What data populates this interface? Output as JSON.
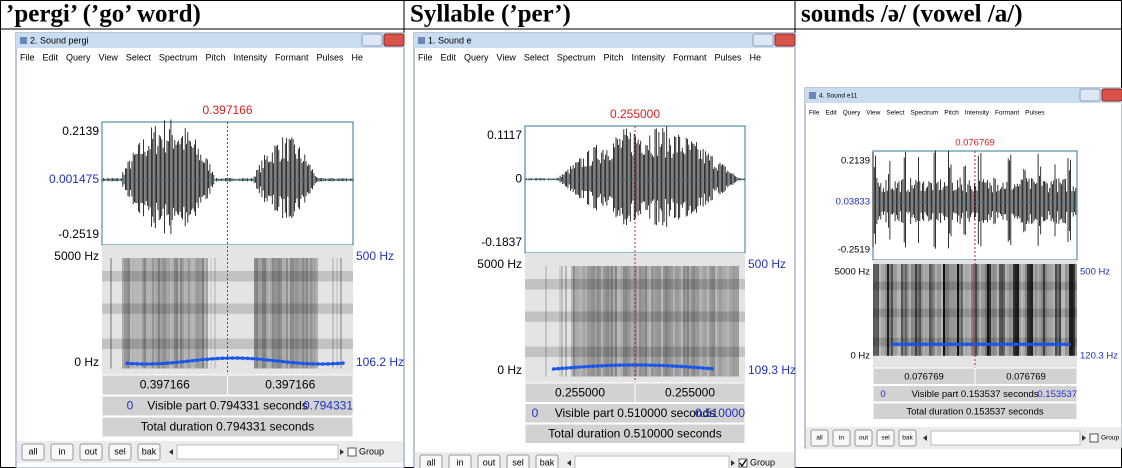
{
  "panels": [
    {
      "heading": "’pergi’ (’go’ word)",
      "window_title": "2. Sound pergi",
      "menu": [
        "File",
        "Edit",
        "Query",
        "View",
        "Select",
        "Spectrum",
        "Pitch",
        "Intensity",
        "Formant",
        "Pulses",
        "He"
      ],
      "cursor": "0.397166",
      "wave_ticks": [
        "0.2139",
        "0.001475",
        "-0.2519"
      ],
      "freq_top": "5000 Hz",
      "freq_bottom": "0 Hz",
      "right_top": "500 Hz",
      "pitch": "106.2 Hz",
      "times": [
        "0.397166",
        "0.397166"
      ],
      "visible_start": "0",
      "visible": "Visible part 0.794331 seconds",
      "visible_end": "0.794331",
      "total": "Total duration 0.794331 seconds",
      "buttons": [
        "all",
        "in",
        "out",
        "sel",
        "bak"
      ],
      "group": "Group",
      "group_checked": false
    },
    {
      "heading": "Syllable (’per’)",
      "window_title": "1. Sound e",
      "menu": [
        "File",
        "Edit",
        "Query",
        "View",
        "Select",
        "Spectrum",
        "Pitch",
        "Intensity",
        "Formant",
        "Pulses",
        "He"
      ],
      "cursor": "0.255000",
      "wave_ticks": [
        "0.1117",
        "0",
        "-0.1837"
      ],
      "freq_top": "5000 Hz",
      "freq_bottom": "0 Hz",
      "right_top": "500 Hz",
      "pitch": "109.3 Hz",
      "times": [
        "0.255000",
        "0.255000"
      ],
      "visible_start": "0",
      "visible": "Visible part 0.510000 seconds",
      "visible_end": "0.510000",
      "total": "Total duration 0.510000 seconds",
      "buttons": [
        "all",
        "in",
        "out",
        "sel",
        "bak"
      ],
      "group": "Group",
      "group_checked": true
    },
    {
      "heading": "sounds /ə/ (vowel /a/)",
      "window_title": "4. Sound e11",
      "menu": [
        "File",
        "Edit",
        "Query",
        "View",
        "Select",
        "Spectrum",
        "Pitch",
        "Intensity",
        "Formant",
        "Pulses"
      ],
      "cursor": "0.076769",
      "wave_ticks": [
        "0.2139",
        "0.03833",
        "-0.2519"
      ],
      "freq_top": "5000 Hz",
      "freq_bottom": "0 Hz",
      "right_top": "500 Hz",
      "pitch": "120.3 Hz",
      "times": [
        "0.076769",
        "0.076769"
      ],
      "visible_start": "0",
      "visible": "Visible part 0.153537 seconds",
      "visible_end": "0.153537",
      "total": "Total duration 0.153537 seconds",
      "buttons": [
        "all",
        "in",
        "out",
        "sel",
        "bak"
      ],
      "group": "Group",
      "group_checked": false
    }
  ]
}
